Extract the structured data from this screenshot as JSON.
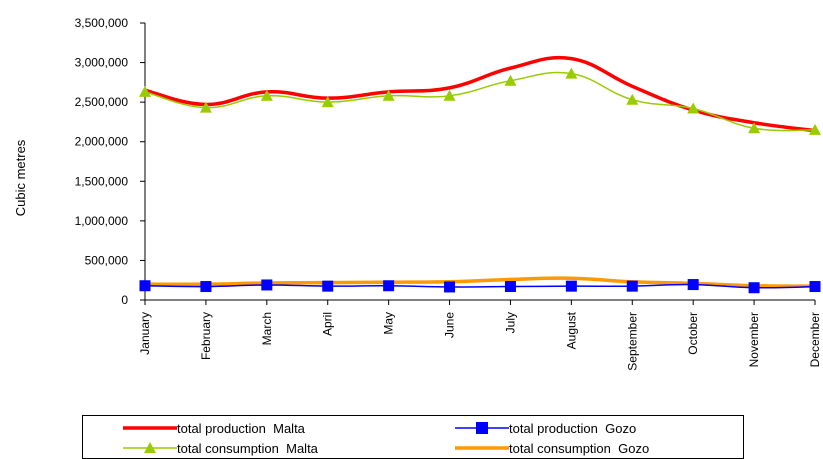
{
  "chart_data": {
    "type": "line",
    "title": "",
    "xlabel": "",
    "ylabel": "Cubic metres",
    "ylim": [
      0,
      3500000
    ],
    "yticks": [
      "0",
      "500,000",
      "1,000,000",
      "1,500,000",
      "2,000,000",
      "2,500,000",
      "3,000,000",
      "3,500,000"
    ],
    "ytick_values": [
      0,
      500000,
      1000000,
      1500000,
      2000000,
      2500000,
      3000000,
      3500000
    ],
    "categories": [
      "January",
      "February",
      "March",
      "April",
      "May",
      "June",
      "July",
      "August",
      "September",
      "October",
      "November",
      "December"
    ],
    "grid": false,
    "legend_position": "bottom",
    "series": [
      {
        "name": "total production  Malta",
        "color": "#ff0000",
        "marker": "none",
        "values": [
          2650000,
          2470000,
          2630000,
          2550000,
          2630000,
          2680000,
          2930000,
          3050000,
          2700000,
          2400000,
          2240000,
          2140000
        ]
      },
      {
        "name": "total consumption  Malta",
        "color": "#99cc00",
        "marker": "triangle",
        "values": [
          2630000,
          2430000,
          2580000,
          2500000,
          2580000,
          2580000,
          2770000,
          2860000,
          2530000,
          2420000,
          2170000,
          2150000
        ]
      },
      {
        "name": "total production  Gozo",
        "color": "#0000ff",
        "marker": "square",
        "values": [
          180000,
          170000,
          190000,
          175000,
          180000,
          165000,
          170000,
          175000,
          175000,
          195000,
          155000,
          170000
        ]
      },
      {
        "name": "total consumption  Gozo",
        "color": "#ff9900",
        "marker": "none",
        "values": [
          200000,
          200000,
          215000,
          220000,
          225000,
          230000,
          260000,
          275000,
          230000,
          210000,
          180000,
          175000
        ]
      }
    ]
  }
}
